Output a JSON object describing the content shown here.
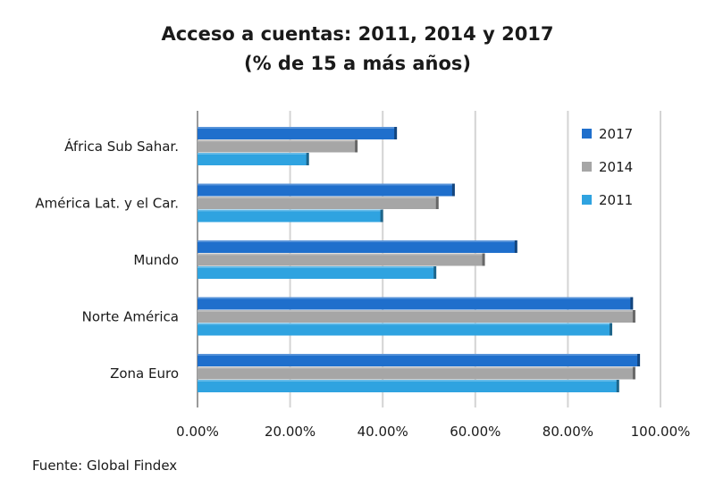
{
  "chart_data": {
    "type": "bar",
    "orientation": "horizontal",
    "title": "Acceso a cuentas: 2011, 2014 y 2017",
    "subtitle": "(% de 15 a más años)",
    "categories": [
      "África Sub Sahar.",
      "América Lat. y el Car.",
      "Mundo",
      "Norte América",
      "Zona Euro"
    ],
    "series": [
      {
        "name": "2017",
        "color": "#1f6fcc",
        "values": [
          42.5,
          55.0,
          68.5,
          93.5,
          95.0
        ]
      },
      {
        "name": "2014",
        "color": "#a6a6a6",
        "values": [
          34.0,
          51.5,
          61.5,
          94.0,
          94.0
        ]
      },
      {
        "name": "2011",
        "color": "#2fa3e0",
        "values": [
          23.5,
          39.5,
          51.0,
          89.0,
          90.5
        ]
      }
    ],
    "xlim": [
      0,
      100
    ],
    "xticks": [
      "0.00%",
      "20.00%",
      "40.00%",
      "60.00%",
      "80.00%",
      "100.00%"
    ],
    "xlabel": "",
    "ylabel": "",
    "grid": true,
    "legend_position": "top-right",
    "source": "Fuente: Global Findex"
  }
}
